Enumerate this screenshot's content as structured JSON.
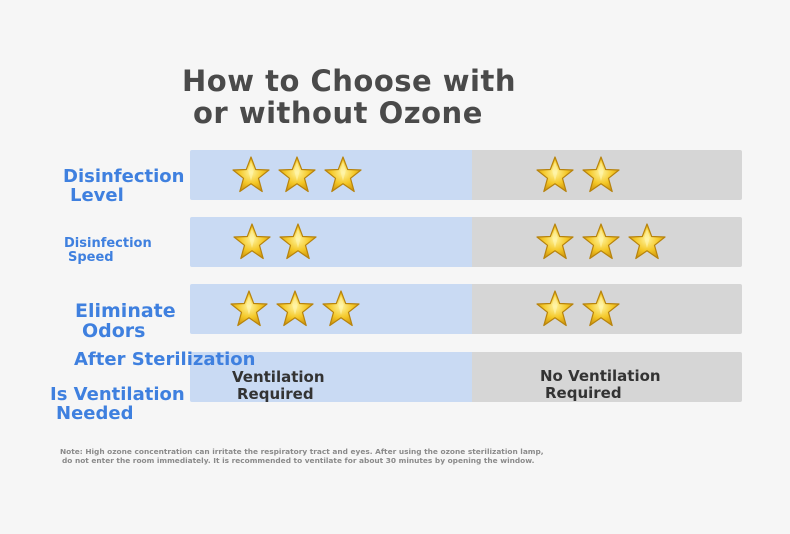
{
  "title": {
    "line1": "How to Choose with",
    "line2": "or without Ozone"
  },
  "rows": [
    {
      "label1": "Disinfection",
      "label2": "Level",
      "left_stars": 3,
      "right_stars": 2
    },
    {
      "label1": "Disinfection",
      "label2": "Speed",
      "left_stars": 2,
      "right_stars": 3
    },
    {
      "label1": "Eliminate",
      "label2": "Odors",
      "left_stars": 3,
      "right_stars": 2
    },
    {
      "label_top": "After Sterilization",
      "label1": "Is Ventilation",
      "label2": "Needed",
      "left_text1": "Ventilation",
      "left_text2": "Required",
      "right_text1": "No Ventilation",
      "right_text2": "Required"
    }
  ],
  "note": {
    "line1": "Note: High ozone concentration can irritate the respiratory tract and eyes. After using the ozone sterilization lamp,",
    "line2": "do not enter the room immediately. It is recommended to ventilate for about 30 minutes by opening the window."
  },
  "colors": {
    "label": "#3f80df",
    "left_bg": "#c9daf3",
    "right_bg": "#d6d6d6",
    "star": "#f2c41e"
  }
}
